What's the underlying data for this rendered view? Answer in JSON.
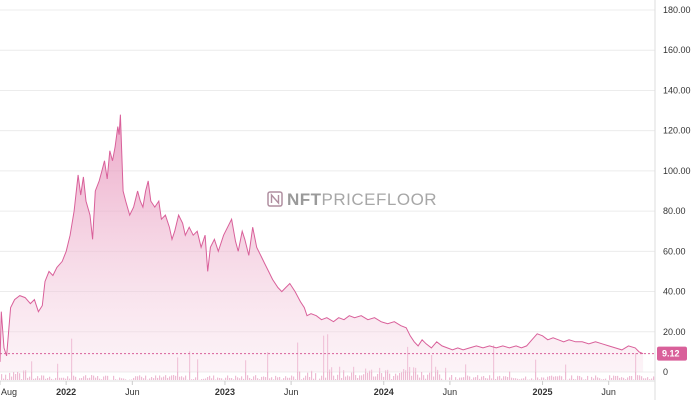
{
  "watermark": {
    "part1": "NFT",
    "part2": "PRICEFLOOR"
  },
  "colors": {
    "accent": "#d9609a",
    "fill": "#f0c6da",
    "grid": "#ececec"
  },
  "chart_data": {
    "type": "area",
    "title": "",
    "xlabel": "",
    "ylabel": "",
    "ylim": [
      0,
      180
    ],
    "y_ticks": [
      "180.00",
      "160.00",
      "140.00",
      "120.00",
      "100.00",
      "80.00",
      "60.00",
      "40.00",
      "20.00",
      "0"
    ],
    "x_ticks": [
      {
        "t": 0.0,
        "label": "Aug",
        "bold": false
      },
      {
        "t": 5.0,
        "label": "2022",
        "bold": true
      },
      {
        "t": 10.0,
        "label": "Jun",
        "bold": false
      },
      {
        "t": 17.0,
        "label": "2023",
        "bold": true
      },
      {
        "t": 22.0,
        "label": "Jun",
        "bold": false
      },
      {
        "t": 29.0,
        "label": "2024",
        "bold": true
      },
      {
        "t": 34.0,
        "label": "Jun",
        "bold": false
      },
      {
        "t": 41.0,
        "label": "2025",
        "bold": true
      },
      {
        "t": 46.0,
        "label": "Jun",
        "bold": false
      }
    ],
    "x_range": [
      0,
      49.5
    ],
    "current_value": "9.12",
    "current_level": 9.12,
    "series": [
      {
        "type": "area",
        "points": [
          [
            0.0,
            5
          ],
          [
            0.1,
            30
          ],
          [
            0.3,
            12
          ],
          [
            0.5,
            8
          ],
          [
            0.8,
            32
          ],
          [
            1.1,
            36
          ],
          [
            1.5,
            38
          ],
          [
            1.9,
            37
          ],
          [
            2.3,
            34
          ],
          [
            2.6,
            36
          ],
          [
            2.9,
            30
          ],
          [
            3.2,
            33
          ],
          [
            3.4,
            45
          ],
          [
            3.7,
            50
          ],
          [
            4.0,
            48
          ],
          [
            4.3,
            52
          ],
          [
            4.7,
            55
          ],
          [
            5.0,
            60
          ],
          [
            5.3,
            68
          ],
          [
            5.6,
            80
          ],
          [
            5.9,
            98
          ],
          [
            6.1,
            88
          ],
          [
            6.3,
            97
          ],
          [
            6.5,
            85
          ],
          [
            6.8,
            78
          ],
          [
            7.0,
            66
          ],
          [
            7.2,
            90
          ],
          [
            7.5,
            95
          ],
          [
            7.7,
            100
          ],
          [
            7.9,
            105
          ],
          [
            8.1,
            96
          ],
          [
            8.3,
            110
          ],
          [
            8.5,
            105
          ],
          [
            8.7,
            112
          ],
          [
            8.9,
            122
          ],
          [
            9.0,
            118
          ],
          [
            9.1,
            128
          ],
          [
            9.3,
            90
          ],
          [
            9.5,
            85
          ],
          [
            9.8,
            78
          ],
          [
            10.1,
            82
          ],
          [
            10.4,
            90
          ],
          [
            10.6,
            85
          ],
          [
            10.8,
            82
          ],
          [
            11.0,
            90
          ],
          [
            11.2,
            95
          ],
          [
            11.4,
            85
          ],
          [
            11.7,
            82
          ],
          [
            12.0,
            85
          ],
          [
            12.2,
            76
          ],
          [
            12.5,
            78
          ],
          [
            12.8,
            72
          ],
          [
            13.0,
            66
          ],
          [
            13.2,
            70
          ],
          [
            13.5,
            78
          ],
          [
            13.8,
            74
          ],
          [
            14.0,
            68
          ],
          [
            14.3,
            72
          ],
          [
            14.6,
            68
          ],
          [
            14.9,
            70
          ],
          [
            15.2,
            62
          ],
          [
            15.5,
            68
          ],
          [
            15.7,
            50
          ],
          [
            15.9,
            62
          ],
          [
            16.2,
            66
          ],
          [
            16.5,
            60
          ],
          [
            16.9,
            68
          ],
          [
            17.2,
            72
          ],
          [
            17.5,
            76
          ],
          [
            17.8,
            65
          ],
          [
            18.0,
            60
          ],
          [
            18.3,
            70
          ],
          [
            18.5,
            66
          ],
          [
            18.8,
            58
          ],
          [
            19.1,
            72
          ],
          [
            19.4,
            62
          ],
          [
            19.7,
            58
          ],
          [
            20.0,
            54
          ],
          [
            20.3,
            50
          ],
          [
            20.6,
            46
          ],
          [
            21.0,
            42
          ],
          [
            21.3,
            40
          ],
          [
            21.6,
            42
          ],
          [
            21.9,
            44
          ],
          [
            22.3,
            40
          ],
          [
            22.7,
            35
          ],
          [
            23.0,
            32
          ],
          [
            23.2,
            28
          ],
          [
            23.5,
            29
          ],
          [
            23.9,
            28
          ],
          [
            24.3,
            26
          ],
          [
            24.7,
            27
          ],
          [
            25.2,
            25
          ],
          [
            25.6,
            27
          ],
          [
            26.0,
            26
          ],
          [
            26.4,
            28
          ],
          [
            26.8,
            27
          ],
          [
            27.3,
            28
          ],
          [
            27.8,
            26
          ],
          [
            28.3,
            27
          ],
          [
            28.8,
            25
          ],
          [
            29.3,
            24
          ],
          [
            29.8,
            25
          ],
          [
            30.3,
            23
          ],
          [
            30.7,
            22
          ],
          [
            31.0,
            18
          ],
          [
            31.3,
            15
          ],
          [
            31.6,
            13
          ],
          [
            31.9,
            16
          ],
          [
            32.2,
            14
          ],
          [
            32.6,
            12
          ],
          [
            33.0,
            15
          ],
          [
            33.4,
            13
          ],
          [
            33.8,
            12
          ],
          [
            34.2,
            11
          ],
          [
            34.6,
            12
          ],
          [
            35.0,
            11
          ],
          [
            35.5,
            12
          ],
          [
            36.0,
            13
          ],
          [
            36.5,
            12
          ],
          [
            37.0,
            13
          ],
          [
            37.5,
            12
          ],
          [
            38.0,
            13
          ],
          [
            38.5,
            12
          ],
          [
            39.0,
            13
          ],
          [
            39.4,
            12
          ],
          [
            39.8,
            13
          ],
          [
            40.2,
            16
          ],
          [
            40.6,
            19
          ],
          [
            41.0,
            18
          ],
          [
            41.4,
            16
          ],
          [
            41.8,
            17
          ],
          [
            42.2,
            16
          ],
          [
            42.6,
            15
          ],
          [
            43.0,
            16
          ],
          [
            43.5,
            15
          ],
          [
            44.0,
            15
          ],
          [
            44.5,
            14
          ],
          [
            45.0,
            15
          ],
          [
            45.5,
            14
          ],
          [
            46.0,
            13
          ],
          [
            46.5,
            12
          ],
          [
            47.0,
            11
          ],
          [
            47.5,
            13
          ],
          [
            48.0,
            12
          ],
          [
            48.3,
            10
          ],
          [
            48.6,
            9.12
          ]
        ]
      }
    ]
  }
}
